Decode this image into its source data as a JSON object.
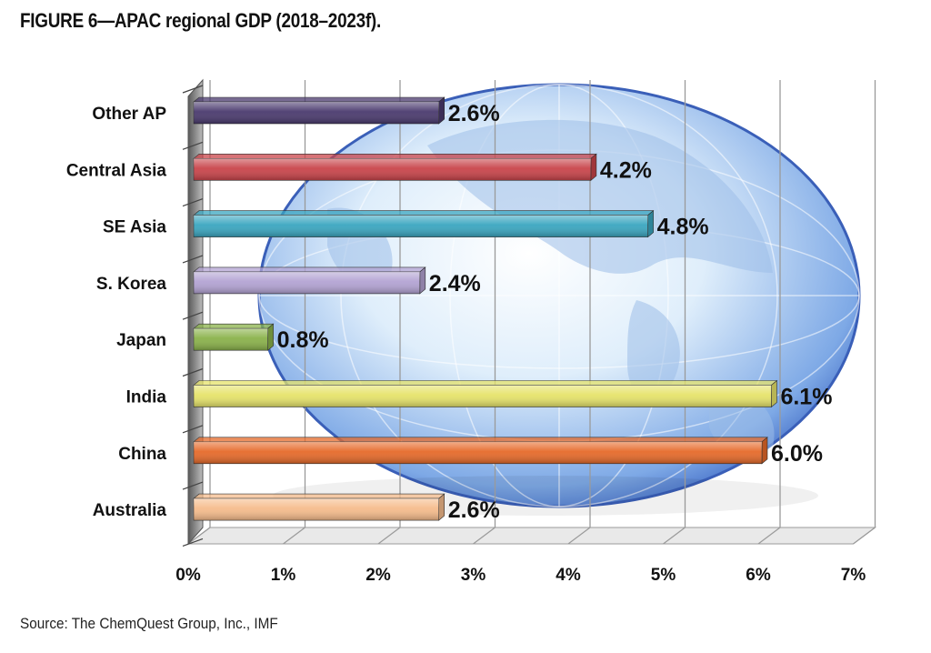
{
  "figure_title": "FIGURE 6—APAC regional GDP (2018–2023f).",
  "source_note": "Source: The ChemQuest Group, Inc., IMF",
  "chart_data": {
    "type": "bar",
    "orientation": "horizontal",
    "title": "FIGURE 6—APAC regional GDP (2018–2023f).",
    "xlabel": "",
    "ylabel": "",
    "xlim": [
      0,
      7
    ],
    "x_ticks": [
      "0%",
      "1%",
      "2%",
      "3%",
      "4%",
      "5%",
      "6%",
      "7%"
    ],
    "grid": "vertical",
    "background_image": "globe",
    "categories": [
      "Other AP",
      "Central Asia",
      "SE Asia",
      "S. Korea",
      "Japan",
      "India",
      "China",
      "Australia"
    ],
    "values": [
      2.6,
      4.2,
      4.8,
      2.4,
      0.8,
      6.1,
      6.0,
      2.6
    ],
    "data_labels": [
      "2.6%",
      "4.2%",
      "4.8%",
      "2.4%",
      "0.8%",
      "6.1%",
      "6.0%",
      "2.6%"
    ],
    "colors": [
      "#4a3a6e",
      "#c9444a",
      "#3aa6c0",
      "#b3a3d3",
      "#8ab24a",
      "#e6e36a",
      "#e66a2a",
      "#f6bc8c"
    ]
  }
}
